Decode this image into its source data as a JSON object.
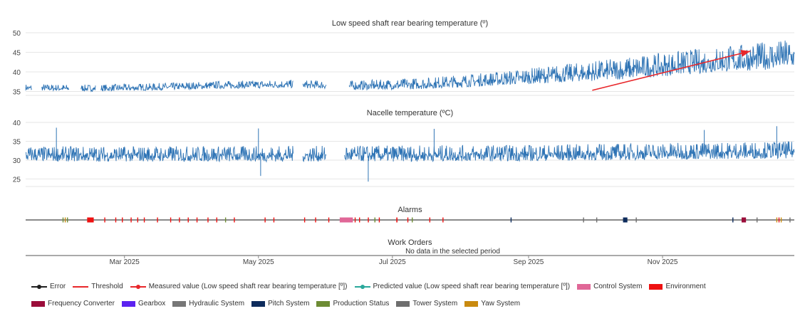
{
  "chart_data": [
    {
      "type": "line",
      "title": "Low speed shaft rear bearing temperature (º)",
      "x_start": "2025-01-15",
      "x_end": "2025-12-31",
      "ylim": [
        34,
        50
      ],
      "yticks": [
        35,
        40,
        45,
        50
      ],
      "series": [
        {
          "name": "Measured value (Low speed shaft rear bearing temperature [º])",
          "color": "#2f74b5",
          "trend_points": [
            {
              "date": "2025-01-15",
              "value": 35.8
            },
            {
              "date": "2025-02-15",
              "value": 35.6
            },
            {
              "date": "2025-03-15",
              "value": 35.9
            },
            {
              "date": "2025-04-15",
              "value": 36.4
            },
            {
              "date": "2025-05-15",
              "value": 36.6
            },
            {
              "date": "2025-06-01",
              "value": 36.4
            },
            {
              "date": "2025-06-15",
              "value": 36.2
            },
            {
              "date": "2025-07-15",
              "value": 36.6
            },
            {
              "date": "2025-08-15",
              "value": 37.6
            },
            {
              "date": "2025-09-15",
              "value": 38.8
            },
            {
              "date": "2025-10-15",
              "value": 40.0
            },
            {
              "date": "2025-11-15",
              "value": 41.6
            },
            {
              "date": "2025-12-31",
              "value": 43.5
            }
          ],
          "amplitude": [
            {
              "date": "2025-01-15",
              "value": 1.2
            },
            {
              "date": "2025-06-01",
              "value": 1.6
            },
            {
              "date": "2025-08-15",
              "value": 2.6
            },
            {
              "date": "2025-10-15",
              "value": 4.2
            },
            {
              "date": "2025-12-31",
              "value": 5.6
            }
          ],
          "gaps": [
            {
              "from": "2025-01-18",
              "to": "2025-01-22"
            },
            {
              "from": "2025-02-04",
              "to": "2025-02-09"
            },
            {
              "from": "2025-02-16",
              "to": "2025-02-18"
            },
            {
              "from": "2025-05-17",
              "to": "2025-05-21"
            },
            {
              "from": "2025-06-01",
              "to": "2025-06-11"
            }
          ]
        }
      ],
      "annotations": [
        {
          "type": "arrow",
          "color": "#e8262a",
          "from": {
            "date": "2025-09-30",
            "value": 35.3
          },
          "to": {
            "date": "2025-12-11",
            "value": 45.3
          }
        }
      ]
    },
    {
      "type": "line",
      "title": "Nacelle temperature (ºC)",
      "x_start": "2025-01-15",
      "x_end": "2025-12-31",
      "ylim": [
        23,
        40
      ],
      "yticks": [
        25,
        30,
        35,
        40
      ],
      "series": [
        {
          "name": "Nacelle temperature",
          "color": "#2f74b5",
          "trend_points": [
            {
              "date": "2025-01-15",
              "value": 31.0
            },
            {
              "date": "2025-06-01",
              "value": 31.0
            },
            {
              "date": "2025-09-01",
              "value": 31.2
            },
            {
              "date": "2025-12-31",
              "value": 32.0
            }
          ],
          "amplitude": [
            {
              "date": "2025-01-15",
              "value": 3.0
            },
            {
              "date": "2025-12-31",
              "value": 3.4
            }
          ],
          "spikes": [
            {
              "date": "2025-01-29",
              "value": 38.6
            },
            {
              "date": "2025-05-01",
              "value": 38.4
            },
            {
              "date": "2025-07-20",
              "value": 38.3
            },
            {
              "date": "2025-11-20",
              "value": 38.0
            },
            {
              "date": "2025-12-23",
              "value": 39.0
            },
            {
              "date": "2025-06-20",
              "value": 24.3
            },
            {
              "date": "2025-05-02",
              "value": 25.8
            }
          ],
          "gaps": [
            {
              "from": "2025-05-17",
              "to": "2025-05-21"
            },
            {
              "from": "2025-06-01",
              "to": "2025-06-09"
            }
          ]
        }
      ]
    },
    {
      "type": "event-timeline",
      "title": "Alarms",
      "events": [
        {
          "date": "2025-02-01",
          "category": "Production Status"
        },
        {
          "date": "2025-02-02",
          "category": "Yaw System"
        },
        {
          "date": "2025-02-03",
          "category": "Production Status"
        },
        {
          "date": "2025-02-12",
          "end": "2025-02-15",
          "category": "Environment"
        },
        {
          "date": "2025-02-20",
          "category": "Environment"
        },
        {
          "date": "2025-02-25",
          "category": "Environment"
        },
        {
          "date": "2025-02-28",
          "category": "Environment"
        },
        {
          "date": "2025-03-04",
          "category": "Environment"
        },
        {
          "date": "2025-03-07",
          "category": "Environment"
        },
        {
          "date": "2025-03-10",
          "category": "Environment"
        },
        {
          "date": "2025-03-16",
          "category": "Environment"
        },
        {
          "date": "2025-03-22",
          "category": "Environment"
        },
        {
          "date": "2025-03-26",
          "category": "Environment"
        },
        {
          "date": "2025-03-30",
          "category": "Environment"
        },
        {
          "date": "2025-04-03",
          "category": "Environment"
        },
        {
          "date": "2025-04-08",
          "category": "Environment"
        },
        {
          "date": "2025-04-12",
          "category": "Environment"
        },
        {
          "date": "2025-04-16",
          "category": "Production Status"
        },
        {
          "date": "2025-04-20",
          "category": "Environment"
        },
        {
          "date": "2025-05-04",
          "category": "Environment"
        },
        {
          "date": "2025-05-08",
          "category": "Environment"
        },
        {
          "date": "2025-05-22",
          "category": "Environment"
        },
        {
          "date": "2025-05-27",
          "category": "Environment"
        },
        {
          "date": "2025-06-02",
          "category": "Environment"
        },
        {
          "date": "2025-06-12",
          "category": "Environment"
        },
        {
          "date": "2025-06-14",
          "category": "Environment"
        },
        {
          "date": "2025-06-20",
          "category": "Environment"
        },
        {
          "date": "2025-06-25",
          "category": "Environment"
        },
        {
          "date": "2025-07-03",
          "category": "Environment"
        },
        {
          "date": "2025-07-08",
          "category": "Environment"
        },
        {
          "date": "2025-06-07",
          "end": "2025-06-13",
          "category": "Control System"
        },
        {
          "date": "2025-06-16",
          "category": "Environment"
        },
        {
          "date": "2025-06-23",
          "category": "Production Status"
        },
        {
          "date": "2025-07-03",
          "category": "Environment"
        },
        {
          "date": "2025-07-10",
          "category": "Production Status"
        },
        {
          "date": "2025-07-18",
          "category": "Environment"
        },
        {
          "date": "2025-07-24",
          "category": "Environment"
        },
        {
          "date": "2025-08-24",
          "category": "Pitch System"
        },
        {
          "date": "2025-09-26",
          "category": "Tower System"
        },
        {
          "date": "2025-10-02",
          "category": "Tower System"
        },
        {
          "date": "2025-10-14",
          "end": "2025-10-16",
          "category": "Pitch System"
        },
        {
          "date": "2025-10-20",
          "category": "Tower System"
        },
        {
          "date": "2025-12-03",
          "category": "Pitch System"
        },
        {
          "date": "2025-12-07",
          "end": "2025-12-09",
          "category": "Frequency Converter"
        },
        {
          "date": "2025-12-14",
          "category": "Tower System"
        },
        {
          "date": "2025-12-23",
          "category": "Yaw System"
        },
        {
          "date": "2025-12-24",
          "category": "Environment"
        },
        {
          "date": "2025-12-25",
          "category": "Yaw System"
        },
        {
          "date": "2025-12-29",
          "category": "Tower System"
        }
      ]
    },
    {
      "type": "event-timeline",
      "title": "Work Orders",
      "message": "No data in the selected period",
      "x_ticks": [
        {
          "date": "2025-03-01",
          "label": "Mar 2025"
        },
        {
          "date": "2025-05-01",
          "label": "May 2025"
        },
        {
          "date": "2025-07-01",
          "label": "Jul 2025"
        },
        {
          "date": "2025-09-01",
          "label": "Sep 2025"
        },
        {
          "date": "2025-11-01",
          "label": "Nov 2025"
        }
      ]
    }
  ],
  "legend": [
    {
      "label": "Error",
      "kind": "line-dot",
      "color": "#1f1f1f"
    },
    {
      "label": "Threshold",
      "kind": "line",
      "color": "#e8262a"
    },
    {
      "label": "Measured value (Low speed shaft rear bearing temperature [º])",
      "kind": "line-dot",
      "color": "#e8262a"
    },
    {
      "label": "Predicted value (Low speed shaft rear bearing temperature [º])",
      "kind": "line-dot",
      "color": "#2aa89b"
    },
    {
      "label": "Control System",
      "kind": "box",
      "color": "#e06797"
    },
    {
      "label": "Environment",
      "kind": "box",
      "color": "#ee1111"
    },
    {
      "label": "Frequency Converter",
      "kind": "box",
      "color": "#9b0d3a"
    },
    {
      "label": "Gearbox",
      "kind": "box",
      "color": "#5b22f0"
    },
    {
      "label": "Hydraulic System",
      "kind": "box",
      "color": "#777777"
    },
    {
      "label": "Pitch System",
      "kind": "box",
      "color": "#0d2b5c"
    },
    {
      "label": "Production Status",
      "kind": "box",
      "color": "#6d8c34"
    },
    {
      "label": "Tower System",
      "kind": "box",
      "color": "#6e6e6e"
    },
    {
      "label": "Yaw System",
      "kind": "box",
      "color": "#c98a0f"
    }
  ]
}
